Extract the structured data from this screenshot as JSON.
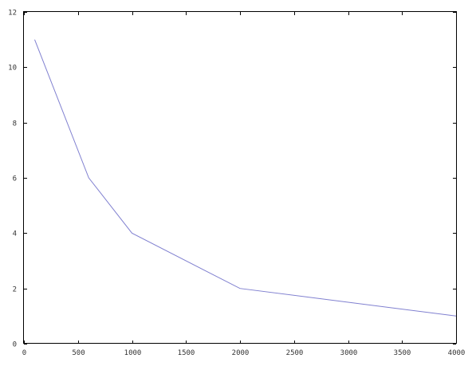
{
  "chart_data": {
    "type": "line",
    "title": "",
    "xlabel": "",
    "ylabel": "",
    "xlim": [
      0,
      4000
    ],
    "ylim": [
      0,
      12
    ],
    "x_ticks": [
      0,
      500,
      1000,
      1500,
      2000,
      2500,
      3000,
      3500,
      4000
    ],
    "y_ticks": [
      0,
      2,
      4,
      6,
      8,
      10,
      12
    ],
    "x_tick_labels": [
      "0",
      "500",
      "1000",
      "1500",
      "2000",
      "2500",
      "3000",
      "3500",
      "4000"
    ],
    "y_tick_labels": [
      "0",
      "2",
      "4",
      "6",
      "8",
      "10",
      "12"
    ],
    "grid": false,
    "series": [
      {
        "x": [
          100,
          600,
          1000,
          2000,
          4000
        ],
        "y": [
          11,
          6,
          4,
          2,
          1
        ],
        "color": "#8080d0"
      }
    ]
  }
}
